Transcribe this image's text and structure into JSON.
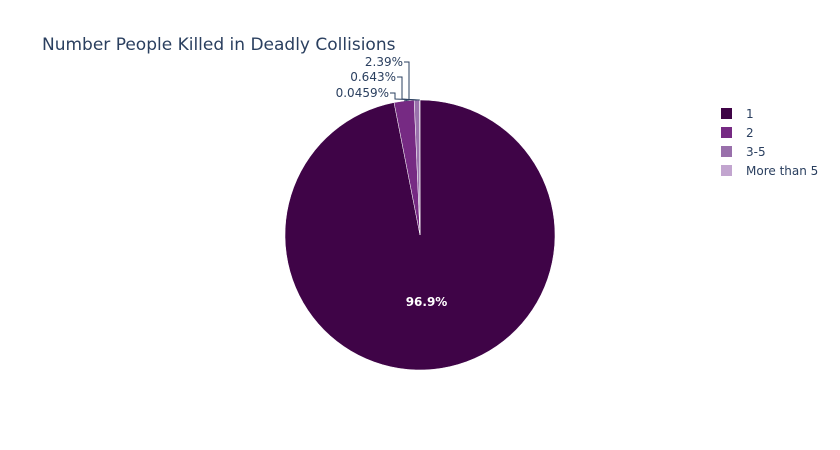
{
  "chart_data": {
    "type": "pie",
    "title": "Number People Killed in Deadly Collisions",
    "categories": [
      "1",
      "2",
      "3-5",
      "More than 5"
    ],
    "values": [
      96.9,
      2.39,
      0.643,
      0.0459
    ],
    "labels": [
      "96.9%",
      "2.39%",
      "0.643%",
      "0.0459%"
    ],
    "colors": [
      "#3f0447",
      "#762a83",
      "#9970ab",
      "#c2a5cf"
    ],
    "legend_position": "right",
    "direction": "clockwise",
    "rotation_start": "top"
  }
}
